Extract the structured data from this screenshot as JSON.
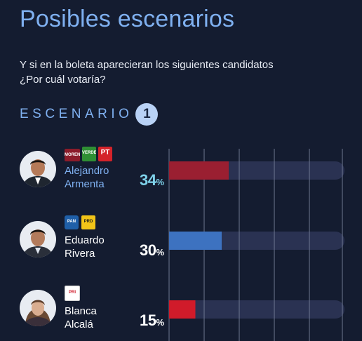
{
  "header": {
    "title": "Posibles escenarios",
    "subtitle_line1": "Y si en la boleta aparecieran los siguientes candidatos",
    "subtitle_line2": "¿Por cuál votaría?"
  },
  "scenario": {
    "label": "ESCENARIO",
    "number": "1"
  },
  "colors": {
    "background": "#141c30",
    "track": "#2a3252",
    "gridline": "#6e7891",
    "accent_title": "#7fb0f0",
    "accent_percent": "#7fd2ea"
  },
  "candidates": [
    {
      "first_name": "Alejandro",
      "last_name": "Armenta",
      "percent_value": "34",
      "percent_sign": "%",
      "bar_color": "#9a1f31",
      "parties": [
        {
          "label": "MORENA",
          "color": "#8c1c2a",
          "icon": "morena-logo"
        },
        {
          "label": "VERDE",
          "color": "#2f8f34",
          "icon": "verde-logo"
        },
        {
          "label": "PT",
          "color": "#d4232a",
          "icon": "pt-logo"
        }
      ]
    },
    {
      "first_name": "Eduardo",
      "last_name": "Rivera",
      "percent_value": "30",
      "percent_sign": "%",
      "bar_color": "#3d72c0",
      "parties": [
        {
          "label": "PAN",
          "color": "#1f5fa8",
          "icon": "pan-logo"
        },
        {
          "label": "PRD",
          "color": "#f2c418",
          "icon": "prd-logo"
        }
      ]
    },
    {
      "first_name": "Blanca",
      "last_name": "Alcalá",
      "percent_value": "15",
      "percent_sign": "%",
      "bar_color": "#d01b2a",
      "parties": [
        {
          "label": "PRI",
          "color": "#ffffff",
          "icon": "pri-logo"
        }
      ]
    }
  ],
  "chart_data": {
    "type": "bar",
    "orientation": "horizontal",
    "title": "Posibles escenarios",
    "subtitle": "Y si en la boleta aparecieran los siguientes candidatos ¿Por cuál votaría?",
    "categories": [
      "Alejandro Armenta",
      "Eduardo Rivera",
      "Blanca Alcalá"
    ],
    "values": [
      34,
      30,
      15
    ],
    "unit": "%",
    "xlim": [
      0,
      100
    ],
    "grid": true
  }
}
